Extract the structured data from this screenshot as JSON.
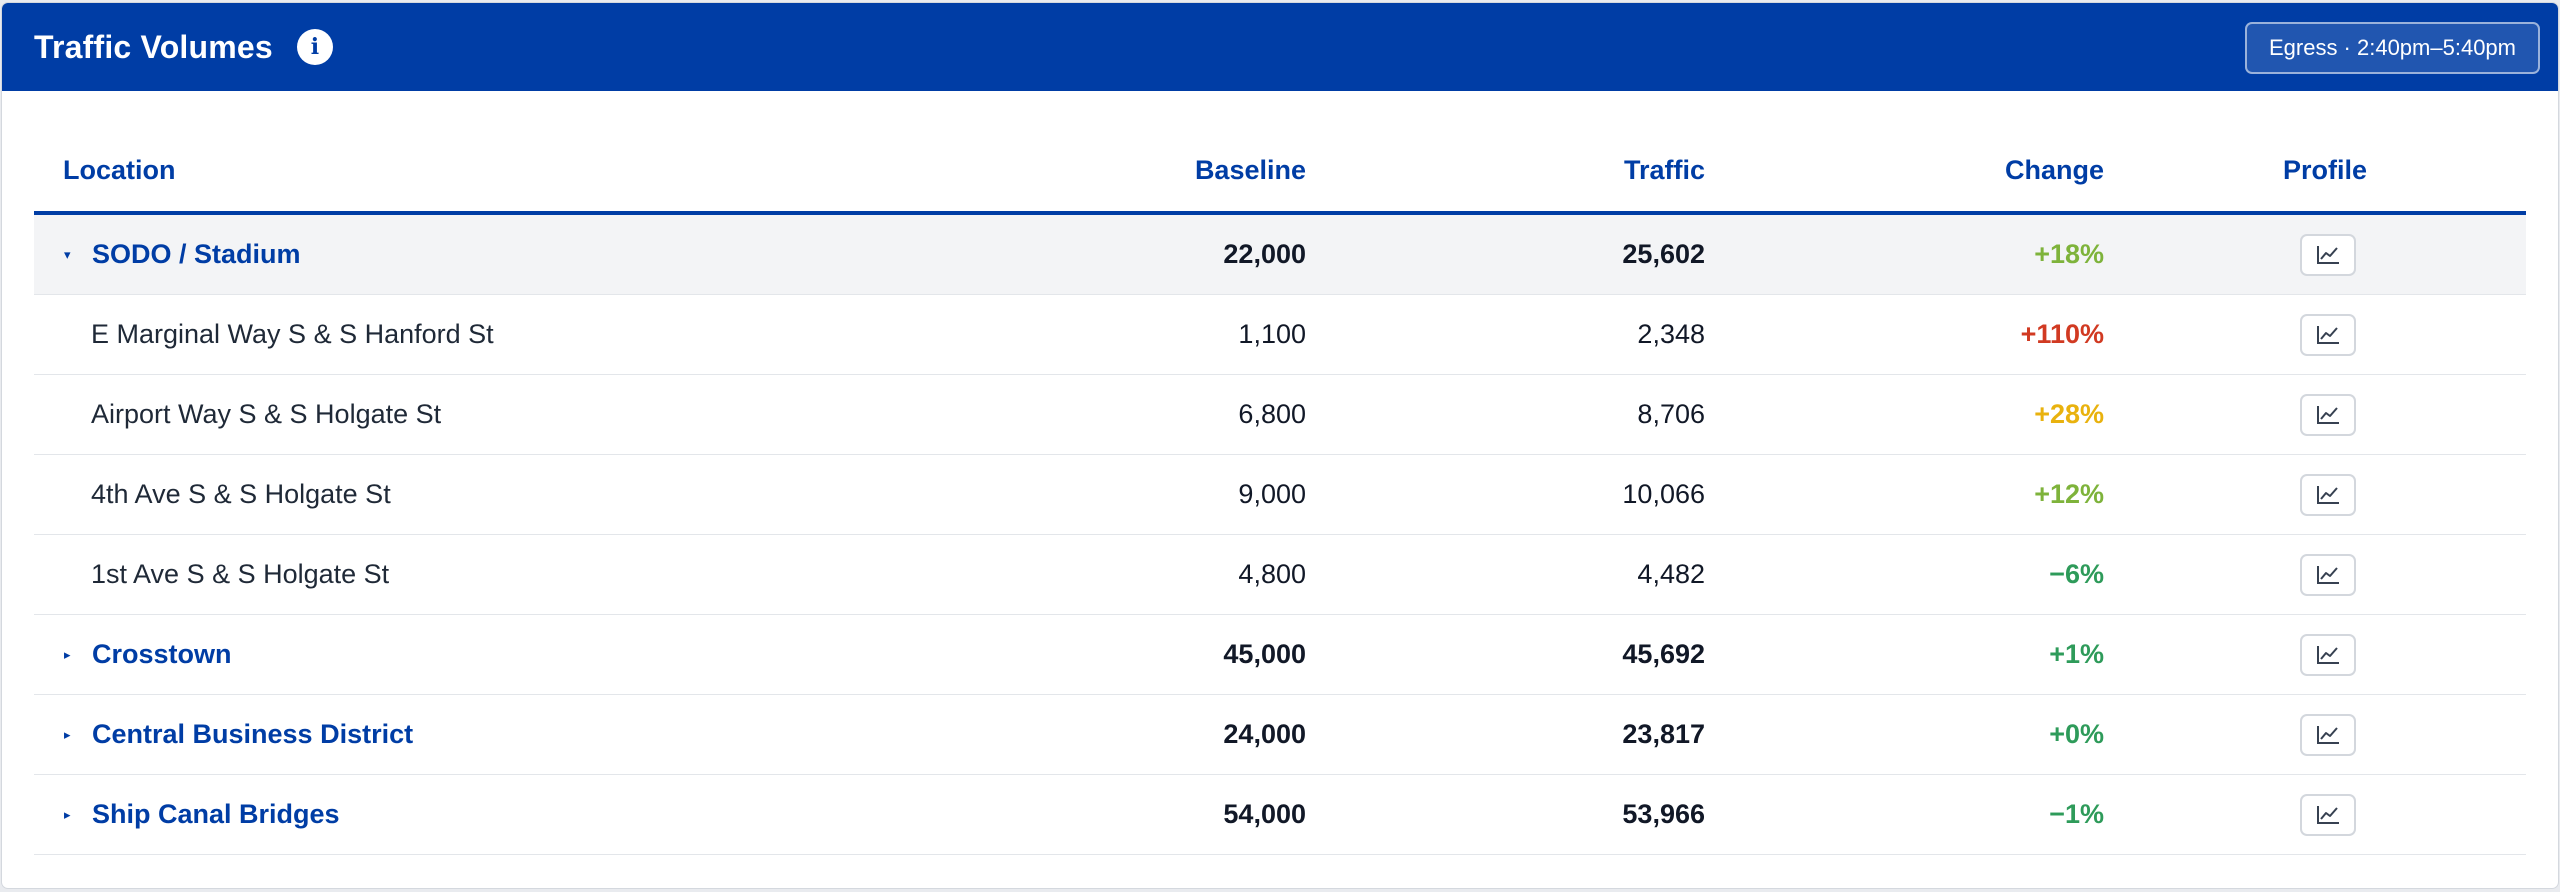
{
  "header": {
    "title": "Traffic Volumes",
    "info_icon": "info-icon",
    "period_label": "Egress · 2:40pm–5:40pm",
    "background_color": "#003da5"
  },
  "columns": {
    "location": "Location",
    "baseline": "Baseline",
    "traffic": "Traffic",
    "change": "Change",
    "profile": "Profile"
  },
  "colors": {
    "accent": "#003da5",
    "change_red": "#d13a22",
    "change_amber": "#e9b20e",
    "change_lightgreen": "#7eb33b",
    "change_green": "#2e9b5a"
  },
  "rows": [
    {
      "type": "group",
      "expanded": true,
      "toggle": "▾",
      "location": "SODO / Stadium",
      "baseline": "22,000",
      "traffic": "25,602",
      "change": "+18%",
      "change_color": "#7eb33b",
      "profile_icon": "line-chart-icon"
    },
    {
      "type": "sub",
      "location": "E Marginal Way S & S Hanford St",
      "baseline": "1,100",
      "traffic": "2,348",
      "change": "+110%",
      "change_color": "#d13a22",
      "profile_icon": "line-chart-icon"
    },
    {
      "type": "sub",
      "location": "Airport Way S & S Holgate St",
      "baseline": "6,800",
      "traffic": "8,706",
      "change": "+28%",
      "change_color": "#e9b20e",
      "profile_icon": "line-chart-icon"
    },
    {
      "type": "sub",
      "location": "4th Ave S & S Holgate St",
      "baseline": "9,000",
      "traffic": "10,066",
      "change": "+12%",
      "change_color": "#7eb33b",
      "profile_icon": "line-chart-icon"
    },
    {
      "type": "sub",
      "location": "1st Ave S & S Holgate St",
      "baseline": "4,800",
      "traffic": "4,482",
      "change": "−6%",
      "change_color": "#2e9b5a",
      "profile_icon": "line-chart-icon"
    },
    {
      "type": "group",
      "expanded": false,
      "toggle": "▸",
      "location": "Crosstown",
      "baseline": "45,000",
      "traffic": "45,692",
      "change": "+1%",
      "change_color": "#2e9b5a",
      "profile_icon": "line-chart-icon"
    },
    {
      "type": "group",
      "expanded": false,
      "toggle": "▸",
      "location": "Central Business District",
      "baseline": "24,000",
      "traffic": "23,817",
      "change": "+0%",
      "change_color": "#2e9b5a",
      "profile_icon": "line-chart-icon"
    },
    {
      "type": "group",
      "expanded": false,
      "toggle": "▸",
      "location": "Ship Canal Bridges",
      "baseline": "54,000",
      "traffic": "53,966",
      "change": "−1%",
      "change_color": "#2e9b5a",
      "profile_icon": "line-chart-icon"
    }
  ]
}
